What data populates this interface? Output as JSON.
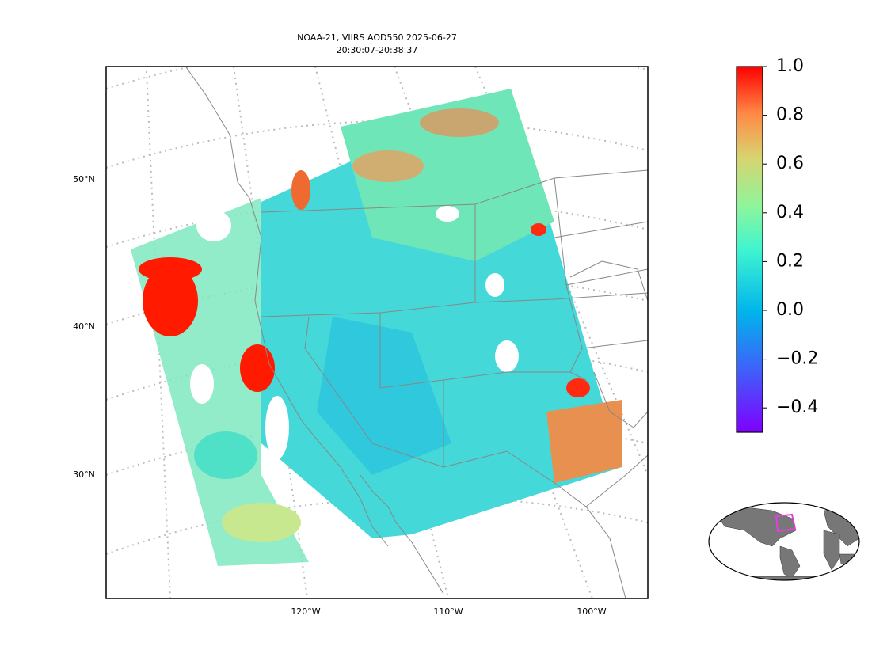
{
  "title": "NOAA-21, VIIRS AOD550 2025-06-27",
  "subtitle": "20:30:07-20:38:37",
  "map": {
    "lat_labels": [
      "50°N",
      "40°N",
      "30°N"
    ],
    "lon_labels": [
      "120°W",
      "110°W",
      "100°W"
    ]
  },
  "colorbar": {
    "lim": [
      -0.5,
      1.0
    ],
    "ticks": [
      {
        "value": -0.4,
        "label": "−0.4"
      },
      {
        "value": -0.2,
        "label": "−0.2"
      },
      {
        "value": 0.0,
        "label": "0.0"
      },
      0.2,
      0.4,
      0.6,
      0.8,
      {
        "value": 1.0,
        "label": "1.0"
      }
    ]
  }
}
